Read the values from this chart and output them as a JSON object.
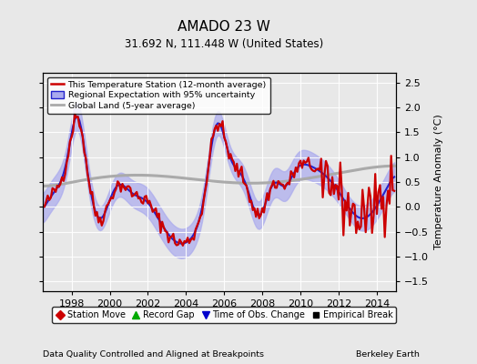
{
  "title": "AMADO 23 W",
  "subtitle": "31.692 N, 111.448 W (United States)",
  "ylabel": "Temperature Anomaly (°C)",
  "footer_left": "Data Quality Controlled and Aligned at Breakpoints",
  "footer_right": "Berkeley Earth",
  "xlim": [
    1996.5,
    2015.0
  ],
  "ylim": [
    -1.7,
    2.7
  ],
  "yticks": [
    -1.5,
    -1.0,
    -0.5,
    0.0,
    0.5,
    1.0,
    1.5,
    2.0,
    2.5
  ],
  "xticks": [
    1998,
    2000,
    2002,
    2004,
    2006,
    2008,
    2010,
    2012,
    2014
  ],
  "legend_entries": [
    {
      "label": "This Temperature Station (12-month average)",
      "color": "#cc0000",
      "lw": 1.8
    },
    {
      "label": "Regional Expectation with 95% uncertainty",
      "color": "#3333cc",
      "lw": 1.5
    },
    {
      "label": "Global Land (5-year average)",
      "color": "#aaaaaa",
      "lw": 2.0
    }
  ],
  "legend_markers": [
    {
      "label": "Station Move",
      "color": "#cc0000",
      "marker": "D"
    },
    {
      "label": "Record Gap",
      "color": "#00aa00",
      "marker": "^"
    },
    {
      "label": "Time of Obs. Change",
      "color": "#0000cc",
      "marker": "v"
    },
    {
      "label": "Empirical Break",
      "color": "#000000",
      "marker": "s"
    }
  ],
  "bg_color": "#e8e8e8",
  "plot_bg_color": "#e8e8e8",
  "uncertainty_color": "#aaaaee",
  "uncertainty_alpha": 0.7,
  "blue_line_color": "#2222cc",
  "red_line_color": "#cc0000",
  "gray_line_color": "#aaaaaa"
}
